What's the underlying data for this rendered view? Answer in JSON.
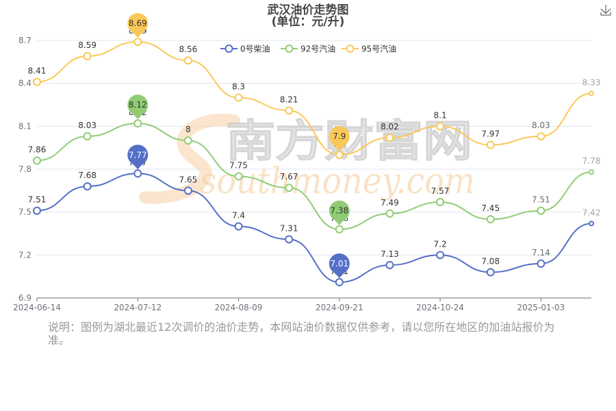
{
  "toolbox": {
    "save_icon": "download-icon"
  },
  "chart_data": {
    "type": "line",
    "title": "武汉油价走势图",
    "subtitle": "(单位：元/升)",
    "categories": [
      "2024-06-14",
      "",
      "2024-07-12",
      "",
      "2024-08-09",
      "",
      "2024-09-21",
      "",
      "2024-10-24",
      "",
      "2025-01-03",
      ""
    ],
    "ylim": [
      6.9,
      8.7
    ],
    "yticks": [
      6.9,
      7.2,
      7.5,
      7.8,
      8.1,
      8.4,
      8.7
    ],
    "grid": true,
    "smooth": true,
    "legend_position": "top",
    "series": [
      {
        "name": "0号柴油",
        "color": "#5470c6",
        "values": [
          7.51,
          7.68,
          7.77,
          7.65,
          7.4,
          7.31,
          7.01,
          7.13,
          7.2,
          7.08,
          7.14,
          7.42
        ],
        "pins": {
          "max": 7.77,
          "min": 7.01
        }
      },
      {
        "name": "92号汽油",
        "color": "#91cc75",
        "values": [
          7.86,
          8.03,
          8.12,
          8,
          7.75,
          7.67,
          7.38,
          7.49,
          7.57,
          7.45,
          7.51,
          7.78
        ],
        "pins": {
          "max": 8.12,
          "min": 7.38
        }
      },
      {
        "name": "95号汽油",
        "color": "#fac858",
        "values": [
          8.41,
          8.59,
          8.69,
          8.56,
          8.3,
          8.21,
          7.9,
          8.02,
          8.1,
          7.97,
          8.03,
          8.33
        ],
        "pins": {
          "max": 8.69,
          "min": 7.9
        }
      }
    ]
  },
  "note": "说明：图例为湖北最近12次调价的油价走势，本网站油价数据仅供参考，请以您所在地区的加油站报价为准。",
  "watermark": {
    "cn": "南方财富网",
    "en": "southmoney.com"
  }
}
